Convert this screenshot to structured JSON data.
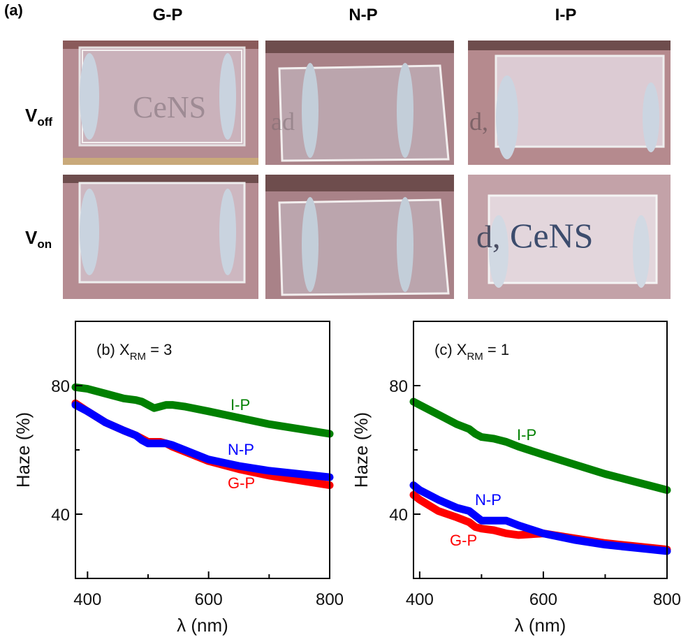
{
  "figure": {
    "panel_a_label": "(a)",
    "columns": [
      "G-P",
      "N-P",
      "I-P"
    ],
    "rows": [
      {
        "main": "V",
        "sub": "off"
      },
      {
        "main": "V",
        "sub": "on"
      }
    ],
    "photo_text": {
      "logo": "CeNS",
      "fragment_ad": "ad",
      "fragment_d": "d,"
    }
  },
  "colors": {
    "G-P": "#ff0000",
    "N-P": "#0000ff",
    "I-P": "#008000"
  },
  "chart_data": [
    {
      "type": "line",
      "panel": "(b)",
      "title_parts": {
        "prefix": "(b)  X",
        "sub": "RM",
        "suffix": " = 3"
      },
      "xlabel": "λ (nm)",
      "ylabel": "Haze (%)",
      "xlim": [
        380,
        800
      ],
      "ylim": [
        20,
        100
      ],
      "xticks": [
        400,
        600,
        800
      ],
      "yticks": [
        40,
        80
      ],
      "series": [
        {
          "name": "I-P",
          "x": [
            380,
            400,
            430,
            460,
            480,
            490,
            500,
            510,
            520,
            530,
            540,
            560,
            600,
            650,
            700,
            750,
            800
          ],
          "y": [
            79.5,
            79,
            77.5,
            76,
            75.5,
            75,
            74,
            73,
            73.5,
            74,
            74,
            73.5,
            72,
            70,
            68,
            66.5,
            65
          ]
        },
        {
          "name": "N-P",
          "x": [
            380,
            400,
            430,
            460,
            480,
            490,
            500,
            510,
            520,
            530,
            540,
            560,
            600,
            650,
            700,
            750,
            800
          ],
          "y": [
            74,
            72,
            68.5,
            66,
            64.5,
            63,
            62,
            62,
            62,
            62,
            61.5,
            60,
            57,
            55,
            53.5,
            52.5,
            51.5
          ]
        },
        {
          "name": "G-P",
          "x": [
            380,
            400,
            430,
            460,
            480,
            490,
            500,
            510,
            520,
            530,
            540,
            560,
            600,
            650,
            700,
            750,
            800
          ],
          "y": [
            74.5,
            72,
            68.5,
            66,
            64.5,
            63.5,
            62.5,
            62.5,
            62.5,
            62,
            61,
            59.5,
            56.5,
            54,
            52,
            50.5,
            49
          ]
        }
      ]
    },
    {
      "type": "line",
      "panel": "(c)",
      "title_parts": {
        "prefix": "(c)  X",
        "sub": "RM",
        "suffix": " = 1"
      },
      "xlabel": "λ (nm)",
      "ylabel": "Haze (%)",
      "xlim": [
        390,
        800
      ],
      "ylim": [
        20,
        100
      ],
      "xticks": [
        400,
        600,
        800
      ],
      "yticks": [
        40,
        80
      ],
      "series": [
        {
          "name": "I-P",
          "x": [
            390,
            400,
            430,
            460,
            480,
            490,
            500,
            520,
            540,
            560,
            600,
            650,
            700,
            750,
            800
          ],
          "y": [
            75,
            74,
            71,
            68,
            66.5,
            65,
            64,
            63.5,
            62.5,
            61,
            58.5,
            55.5,
            52.5,
            50,
            47.5
          ]
        },
        {
          "name": "N-P",
          "x": [
            390,
            400,
            430,
            460,
            480,
            490,
            500,
            520,
            540,
            560,
            600,
            650,
            700,
            750,
            800
          ],
          "y": [
            49,
            47.5,
            44.5,
            42,
            41,
            39.5,
            38,
            38,
            38,
            36.5,
            34,
            32,
            30.5,
            29.5,
            28.5
          ]
        },
        {
          "name": "G-P",
          "x": [
            390,
            400,
            430,
            460,
            480,
            490,
            500,
            520,
            540,
            560,
            600,
            650,
            700,
            750,
            800
          ],
          "y": [
            46,
            44.5,
            41,
            39,
            37.5,
            36,
            35.5,
            35,
            34,
            33.5,
            34,
            32.5,
            31,
            30,
            29
          ]
        }
      ]
    }
  ]
}
